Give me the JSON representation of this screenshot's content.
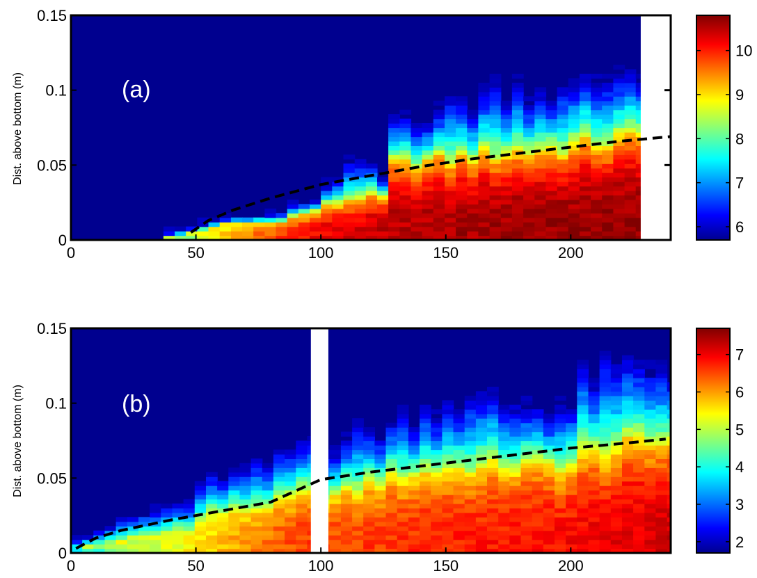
{
  "chart_data": [
    {
      "type": "heatmap",
      "panel_label": "(a)",
      "ylabel": "Dist. above bottom (m)",
      "xlim": [
        0,
        240
      ],
      "ylim": [
        0,
        0.15
      ],
      "x_ticks": [
        0,
        50,
        100,
        150,
        200
      ],
      "y_ticks": [
        0,
        0.05,
        0.1,
        0.15
      ],
      "y_tick_labels": [
        "0",
        "0.05",
        "0.1",
        "0.15"
      ],
      "colorbar": {
        "range": [
          5.7,
          10.8
        ],
        "ticks": [
          6,
          7,
          8,
          9,
          10
        ],
        "colormap": "jet",
        "colors": [
          "#00008f",
          "#0000ff",
          "#00ffff",
          "#ffff00",
          "#ff0000",
          "#800000"
        ]
      },
      "no_data_x_range": [
        228,
        240
      ],
      "profile": {
        "bin_width_x": 4.5,
        "x_start": 37,
        "x_end": 228,
        "interface_height_points": [
          [
            37,
            0.001
          ],
          [
            45,
            0.003
          ],
          [
            55,
            0.008
          ],
          [
            65,
            0.011
          ],
          [
            80,
            0.012
          ],
          [
            95,
            0.018
          ],
          [
            105,
            0.024
          ],
          [
            115,
            0.028
          ],
          [
            125,
            0.028
          ],
          [
            127,
            0.05
          ],
          [
            150,
            0.053
          ],
          [
            175,
            0.058
          ],
          [
            200,
            0.062
          ],
          [
            228,
            0.068
          ]
        ],
        "plume_top_points": [
          [
            37,
            0.002
          ],
          [
            45,
            0.005
          ],
          [
            55,
            0.012
          ],
          [
            65,
            0.015
          ],
          [
            80,
            0.017
          ],
          [
            95,
            0.025
          ],
          [
            105,
            0.038
          ],
          [
            115,
            0.055
          ],
          [
            125,
            0.04
          ],
          [
            127,
            0.082
          ],
          [
            150,
            0.09
          ],
          [
            175,
            0.105
          ],
          [
            200,
            0.1
          ],
          [
            228,
            0.12
          ]
        ],
        "core_value_points": [
          [
            37,
            7.5
          ],
          [
            50,
            8.5
          ],
          [
            70,
            9.5
          ],
          [
            100,
            10.2
          ],
          [
            127,
            10.5
          ],
          [
            160,
            10.6
          ],
          [
            228,
            10.7
          ]
        ]
      },
      "dashed_curve": {
        "x": [
          48,
          55,
          65,
          80,
          100,
          120,
          140,
          160,
          180,
          200,
          220,
          240
        ],
        "y": [
          0.005,
          0.013,
          0.02,
          0.028,
          0.037,
          0.043,
          0.049,
          0.054,
          0.058,
          0.062,
          0.066,
          0.069
        ]
      },
      "right_axis_ticks": [
        0.05,
        0.1
      ]
    },
    {
      "type": "heatmap",
      "panel_label": "(b)",
      "ylabel": "Dist. above bottom (m)",
      "xlim": [
        0,
        240
      ],
      "ylim": [
        0,
        0.15
      ],
      "x_ticks": [
        0,
        50,
        100,
        150,
        200
      ],
      "y_ticks": [
        0,
        0.05,
        0.1,
        0.15
      ],
      "y_tick_labels": [
        "0",
        "0.05",
        "0.1",
        "0.15"
      ],
      "colorbar": {
        "range": [
          1.7,
          7.7
        ],
        "ticks": [
          2,
          3,
          4,
          5,
          6,
          7
        ],
        "colormap": "jet",
        "colors": [
          "#00008f",
          "#0000ff",
          "#00ffff",
          "#ffff00",
          "#ff0000",
          "#800000"
        ]
      },
      "no_data_x_range": [
        96,
        103
      ],
      "profile": {
        "bin_width_x": 4.5,
        "x_start": 0,
        "x_end": 240,
        "interface_height_points": [
          [
            0,
            0.002
          ],
          [
            20,
            0.008
          ],
          [
            50,
            0.016
          ],
          [
            54,
            0.025
          ],
          [
            80,
            0.03
          ],
          [
            95,
            0.04
          ],
          [
            103,
            0.036
          ],
          [
            130,
            0.05
          ],
          [
            150,
            0.055
          ],
          [
            200,
            0.058
          ],
          [
            205,
            0.065
          ],
          [
            240,
            0.075
          ]
        ],
        "plume_top_points": [
          [
            0,
            0.008
          ],
          [
            20,
            0.022
          ],
          [
            50,
            0.038
          ],
          [
            54,
            0.05
          ],
          [
            80,
            0.06
          ],
          [
            95,
            0.08
          ],
          [
            103,
            0.075
          ],
          [
            130,
            0.09
          ],
          [
            150,
            0.105
          ],
          [
            200,
            0.1
          ],
          [
            205,
            0.12
          ],
          [
            240,
            0.13
          ]
        ],
        "core_value_points": [
          [
            0,
            3.5
          ],
          [
            20,
            4.8
          ],
          [
            50,
            5.5
          ],
          [
            80,
            6.3
          ],
          [
            95,
            6.6
          ],
          [
            103,
            6.5
          ],
          [
            150,
            6.7
          ],
          [
            200,
            6.9
          ],
          [
            240,
            7.2
          ]
        ]
      },
      "dashed_curve": {
        "x": [
          2,
          10,
          20,
          40,
          60,
          80,
          100,
          120,
          140,
          160,
          180,
          200,
          220,
          238
        ],
        "y": [
          0.003,
          0.01,
          0.015,
          0.022,
          0.028,
          0.034,
          0.049,
          0.054,
          0.058,
          0.062,
          0.066,
          0.07,
          0.073,
          0.076
        ]
      }
    }
  ]
}
